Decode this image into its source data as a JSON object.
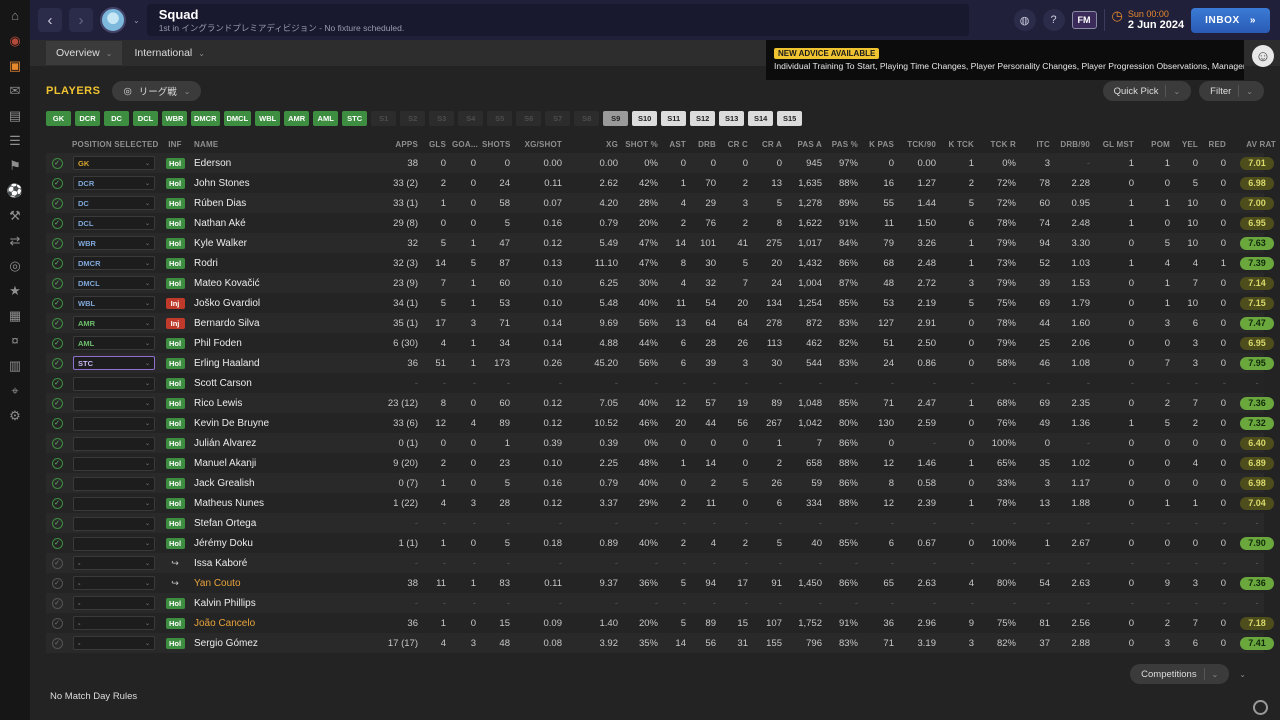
{
  "sidebar": {
    "icons": [
      {
        "name": "home-icon",
        "glyph": "⌂"
      },
      {
        "name": "notifications-icon",
        "glyph": "◉",
        "color": "#b44a3a"
      },
      {
        "name": "kit-icon",
        "glyph": "▣",
        "active": true
      },
      {
        "name": "inbox-icon",
        "glyph": "✉"
      },
      {
        "name": "news-icon",
        "glyph": "▤"
      },
      {
        "name": "squad-list-icon",
        "glyph": "☰"
      },
      {
        "name": "squad-icon",
        "glyph": "⚑"
      },
      {
        "name": "tactics-icon",
        "glyph": "⚽"
      },
      {
        "name": "training-icon",
        "glyph": "⚒"
      },
      {
        "name": "transfers-icon",
        "glyph": "⇄"
      },
      {
        "name": "scouting-icon",
        "glyph": "◎"
      },
      {
        "name": "club-icon",
        "glyph": "★"
      },
      {
        "name": "competitions-icon",
        "glyph": "▦"
      },
      {
        "name": "finances-icon",
        "glyph": "¤"
      },
      {
        "name": "stats-icon",
        "glyph": "▥"
      },
      {
        "name": "search-icon",
        "glyph": "⌖"
      },
      {
        "name": "settings-icon",
        "glyph": "⚙"
      }
    ]
  },
  "titlebar": {
    "title": "Squad",
    "subtitle": "1st in イングランドプレミアディビジョン - No fixture scheduled.",
    "fm_logo": "FM",
    "help": "?",
    "time": "Sun 00:00",
    "date": "2 Jun 2024",
    "inbox_label": "INBOX",
    "inbox_arrows": "»"
  },
  "tabs": {
    "overview": "Overview",
    "international": "International"
  },
  "advice": {
    "badge": "NEW ADVICE AVAILABLE",
    "text": "Individual Training To Start, Playing Time Changes, Player Personality Changes, Player Progression Observations, Manager Support"
  },
  "toolbar": {
    "players_label": "PLAYERS",
    "view_label": "リーグ戦",
    "quick_pick_label": "Quick Pick",
    "filter_label": "Filter"
  },
  "filters": {
    "buttons": [
      {
        "label": "GK",
        "style": "active"
      },
      {
        "label": "DCR",
        "style": "active"
      },
      {
        "label": "DC",
        "style": "active"
      },
      {
        "label": "DCL",
        "style": "active"
      },
      {
        "label": "WBR",
        "style": "active"
      },
      {
        "label": "DMCR",
        "style": "active"
      },
      {
        "label": "DMCL",
        "style": "active"
      },
      {
        "label": "WBL",
        "style": "active"
      },
      {
        "label": "AMR",
        "style": "active"
      },
      {
        "label": "AML",
        "style": "active"
      },
      {
        "label": "STC",
        "style": "active"
      },
      {
        "label": "S1",
        "style": "dim"
      },
      {
        "label": "S2",
        "style": "dim"
      },
      {
        "label": "S3",
        "style": "dim"
      },
      {
        "label": "S4",
        "style": "dim"
      },
      {
        "label": "S5",
        "style": "dim"
      },
      {
        "label": "S6",
        "style": "dim"
      },
      {
        "label": "S7",
        "style": "dim"
      },
      {
        "label": "S8",
        "style": "dim"
      },
      {
        "label": "S9",
        "style": "mid"
      },
      {
        "label": "S10",
        "style": "light"
      },
      {
        "label": "S11",
        "style": "light"
      },
      {
        "label": "S12",
        "style": "light"
      },
      {
        "label": "S13",
        "style": "light"
      },
      {
        "label": "S14",
        "style": "light"
      },
      {
        "label": "S15",
        "style": "light"
      }
    ]
  },
  "table": {
    "headers": [
      "POSITION SELECTED",
      "INF",
      "NAME",
      "APPS",
      "GLS",
      "GOA...",
      "SHOTS",
      "XG/SHOT",
      "XG",
      "SHOT %",
      "AST",
      "DRB",
      "CR C",
      "CR A",
      "PAS A",
      "PAS %",
      "K PAS",
      "TCK/90",
      "K TCK",
      "TCK R",
      "ITC",
      "DRB/90",
      "GL MST",
      "POM",
      "YEL",
      "RED",
      "AV RAT"
    ],
    "rows": [
      {
        "sel": "on",
        "pos": "GK",
        "pos_class": "gk",
        "inf": "Hol",
        "name": "Ederson",
        "name_class": "",
        "stats": [
          "38",
          "0",
          "0",
          "0",
          "0.00",
          "0.00",
          "0%",
          "0",
          "0",
          "0",
          "0",
          "945",
          "97%",
          "0",
          "0.00",
          "1",
          "0%",
          "3",
          "-",
          "1",
          "1",
          "0",
          "0"
        ],
        "rating": "7.01",
        "rating_class": "olive"
      },
      {
        "sel": "on",
        "pos": "DCR",
        "pos_class": "def",
        "inf": "Hol",
        "name": "John Stones",
        "name_class": "",
        "stats": [
          "33 (2)",
          "2",
          "0",
          "24",
          "0.11",
          "2.62",
          "42%",
          "1",
          "70",
          "2",
          "13",
          "1,635",
          "88%",
          "16",
          "1.27",
          "2",
          "72%",
          "78",
          "2.28",
          "0",
          "0",
          "5",
          "0"
        ],
        "rating": "6.98",
        "rating_class": "olive"
      },
      {
        "sel": "on",
        "pos": "DC",
        "pos_class": "def",
        "inf": "Hol",
        "name": "Rúben Dias",
        "name_class": "",
        "stats": [
          "33 (1)",
          "1",
          "0",
          "58",
          "0.07",
          "4.20",
          "28%",
          "4",
          "29",
          "3",
          "5",
          "1,278",
          "89%",
          "55",
          "1.44",
          "5",
          "72%",
          "60",
          "0.95",
          "1",
          "1",
          "10",
          "0"
        ],
        "rating": "7.00",
        "rating_class": "olive"
      },
      {
        "sel": "on",
        "pos": "DCL",
        "pos_class": "def",
        "inf": "Hol",
        "name": "Nathan Aké",
        "name_class": "",
        "stats": [
          "29 (8)",
          "0",
          "0",
          "5",
          "0.16",
          "0.79",
          "20%",
          "2",
          "76",
          "2",
          "8",
          "1,622",
          "91%",
          "11",
          "1.50",
          "6",
          "78%",
          "74",
          "2.48",
          "1",
          "0",
          "10",
          "0"
        ],
        "rating": "6.95",
        "rating_class": "olive"
      },
      {
        "sel": "on",
        "pos": "WBR",
        "pos_class": "def",
        "inf": "Hol",
        "name": "Kyle Walker",
        "name_class": "",
        "stats": [
          "32",
          "5",
          "1",
          "47",
          "0.12",
          "5.49",
          "47%",
          "14",
          "101",
          "41",
          "275",
          "1,017",
          "84%",
          "79",
          "3.26",
          "1",
          "79%",
          "94",
          "3.30",
          "0",
          "5",
          "10",
          "0"
        ],
        "rating": "7.63",
        "rating_class": "green"
      },
      {
        "sel": "on",
        "pos": "DMCR",
        "pos_class": "def",
        "inf": "Hol",
        "name": "Rodri",
        "name_class": "",
        "stats": [
          "32 (3)",
          "14",
          "5",
          "87",
          "0.13",
          "11.10",
          "47%",
          "8",
          "30",
          "5",
          "20",
          "1,432",
          "86%",
          "68",
          "2.48",
          "1",
          "73%",
          "52",
          "1.03",
          "1",
          "4",
          "4",
          "1"
        ],
        "rating": "7.39",
        "rating_class": "green"
      },
      {
        "sel": "on",
        "pos": "DMCL",
        "pos_class": "def",
        "inf": "Hol",
        "name": "Mateo Kovačić",
        "name_class": "",
        "stats": [
          "23 (9)",
          "7",
          "1",
          "60",
          "0.10",
          "6.25",
          "30%",
          "4",
          "32",
          "7",
          "24",
          "1,004",
          "87%",
          "48",
          "2.72",
          "3",
          "79%",
          "39",
          "1.53",
          "0",
          "1",
          "7",
          "0"
        ],
        "rating": "7.14",
        "rating_class": "olive"
      },
      {
        "sel": "on",
        "pos": "WBL",
        "pos_class": "def",
        "inf": "Inj",
        "name": "Joško Gvardiol",
        "name_class": "",
        "stats": [
          "34 (1)",
          "5",
          "1",
          "53",
          "0.10",
          "5.48",
          "40%",
          "11",
          "54",
          "20",
          "134",
          "1,254",
          "85%",
          "53",
          "2.19",
          "5",
          "75%",
          "69",
          "1.79",
          "0",
          "1",
          "10",
          "0"
        ],
        "rating": "7.15",
        "rating_class": "olive"
      },
      {
        "sel": "on",
        "pos": "AMR",
        "pos_class": "att",
        "inf": "Inj",
        "name": "Bernardo Silva",
        "name_class": "",
        "stats": [
          "35 (1)",
          "17",
          "3",
          "71",
          "0.14",
          "9.69",
          "56%",
          "13",
          "64",
          "64",
          "278",
          "872",
          "83%",
          "127",
          "2.91",
          "0",
          "78%",
          "44",
          "1.60",
          "0",
          "3",
          "6",
          "0"
        ],
        "rating": "7.47",
        "rating_class": "green"
      },
      {
        "sel": "on",
        "pos": "AML",
        "pos_class": "att",
        "inf": "Hol",
        "name": "Phil Foden",
        "name_class": "",
        "stats": [
          "6 (30)",
          "4",
          "1",
          "34",
          "0.14",
          "4.88",
          "44%",
          "6",
          "28",
          "26",
          "113",
          "462",
          "82%",
          "51",
          "2.50",
          "0",
          "79%",
          "25",
          "2.06",
          "0",
          "0",
          "3",
          "0"
        ],
        "rating": "6.95",
        "rating_class": "olive"
      },
      {
        "sel": "on",
        "pos": "STC",
        "pos_class": "stc",
        "inf": "Hol",
        "name": "Erling Haaland",
        "name_class": "",
        "stats": [
          "36",
          "51",
          "1",
          "173",
          "0.26",
          "45.20",
          "56%",
          "6",
          "39",
          "3",
          "30",
          "544",
          "83%",
          "24",
          "0.86",
          "0",
          "58%",
          "46",
          "1.08",
          "0",
          "7",
          "3",
          "0"
        ],
        "rating": "7.95",
        "rating_class": "green"
      },
      {
        "sel": "on",
        "pos": "",
        "pos_class": "dim",
        "inf": "Hol",
        "name": "Scott Carson",
        "name_class": "",
        "stats": [
          "-",
          "-",
          "-",
          "-",
          "-",
          "-",
          "-",
          "-",
          "-",
          "-",
          "-",
          "-",
          "-",
          "-",
          "-",
          "-",
          "-",
          "-",
          "-",
          "-",
          "-",
          "-",
          "-"
        ],
        "rating": "-",
        "rating_class": "dash"
      },
      {
        "sel": "on",
        "pos": "",
        "pos_class": "dim",
        "inf": "Hol",
        "name": "Rico Lewis",
        "name_class": "",
        "stats": [
          "23 (12)",
          "8",
          "0",
          "60",
          "0.12",
          "7.05",
          "40%",
          "12",
          "57",
          "19",
          "89",
          "1,048",
          "85%",
          "71",
          "2.47",
          "1",
          "68%",
          "69",
          "2.35",
          "0",
          "2",
          "7",
          "0"
        ],
        "rating": "7.36",
        "rating_class": "green"
      },
      {
        "sel": "on",
        "pos": "",
        "pos_class": "dim",
        "inf": "Hol",
        "name": "Kevin De Bruyne",
        "name_class": "",
        "stats": [
          "33 (6)",
          "12",
          "4",
          "89",
          "0.12",
          "10.52",
          "46%",
          "20",
          "44",
          "56",
          "267",
          "1,042",
          "80%",
          "130",
          "2.59",
          "0",
          "76%",
          "49",
          "1.36",
          "1",
          "5",
          "2",
          "0"
        ],
        "rating": "7.32",
        "rating_class": "green"
      },
      {
        "sel": "on",
        "pos": "",
        "pos_class": "dim",
        "inf": "Hol",
        "name": "Julián Álvarez",
        "name_class": "",
        "stats": [
          "0 (1)",
          "0",
          "0",
          "1",
          "0.39",
          "0.39",
          "0%",
          "0",
          "0",
          "0",
          "1",
          "7",
          "86%",
          "0",
          "-",
          "0",
          "100%",
          "0",
          "-",
          "0",
          "0",
          "0",
          "0"
        ],
        "rating": "6.40",
        "rating_class": "olive"
      },
      {
        "sel": "on",
        "pos": "",
        "pos_class": "dim",
        "inf": "Hol",
        "name": "Manuel Akanji",
        "name_class": "",
        "stats": [
          "9 (20)",
          "2",
          "0",
          "23",
          "0.10",
          "2.25",
          "48%",
          "1",
          "14",
          "0",
          "2",
          "658",
          "88%",
          "12",
          "1.46",
          "1",
          "65%",
          "35",
          "1.02",
          "0",
          "0",
          "4",
          "0"
        ],
        "rating": "6.89",
        "rating_class": "olive"
      },
      {
        "sel": "on",
        "pos": "",
        "pos_class": "dim",
        "inf": "Hol",
        "name": "Jack Grealish",
        "name_class": "",
        "stats": [
          "0 (7)",
          "1",
          "0",
          "5",
          "0.16",
          "0.79",
          "40%",
          "0",
          "2",
          "5",
          "26",
          "59",
          "86%",
          "8",
          "0.58",
          "0",
          "33%",
          "3",
          "1.17",
          "0",
          "0",
          "0",
          "0"
        ],
        "rating": "6.98",
        "rating_class": "olive"
      },
      {
        "sel": "on",
        "pos": "",
        "pos_class": "dim",
        "inf": "Hol",
        "name": "Matheus Nunes",
        "name_class": "",
        "stats": [
          "1 (22)",
          "4",
          "3",
          "28",
          "0.12",
          "3.37",
          "29%",
          "2",
          "11",
          "0",
          "6",
          "334",
          "88%",
          "12",
          "2.39",
          "1",
          "78%",
          "13",
          "1.88",
          "0",
          "1",
          "1",
          "0"
        ],
        "rating": "7.04",
        "rating_class": "olive"
      },
      {
        "sel": "on",
        "pos": "",
        "pos_class": "dim",
        "inf": "Hol",
        "name": "Stefan Ortega",
        "name_class": "",
        "stats": [
          "-",
          "-",
          "-",
          "-",
          "-",
          "-",
          "-",
          "-",
          "-",
          "-",
          "-",
          "-",
          "-",
          "-",
          "-",
          "-",
          "-",
          "-",
          "-",
          "-",
          "-",
          "-",
          "-"
        ],
        "rating": "-",
        "rating_class": "dash"
      },
      {
        "sel": "on",
        "pos": "",
        "pos_class": "dim",
        "inf": "Hol",
        "name": "Jérémy Doku",
        "name_class": "",
        "stats": [
          "1 (1)",
          "1",
          "0",
          "5",
          "0.18",
          "0.89",
          "40%",
          "2",
          "4",
          "2",
          "5",
          "40",
          "85%",
          "6",
          "0.67",
          "0",
          "100%",
          "1",
          "2.67",
          "0",
          "0",
          "0",
          "0"
        ],
        "rating": "7.90",
        "rating_class": "green"
      },
      {
        "sel": "dim",
        "pos": "-",
        "pos_class": "dash",
        "inf": "loan",
        "name": "Issa Kaboré",
        "name_class": "",
        "stats": [
          "-",
          "-",
          "-",
          "-",
          "-",
          "-",
          "-",
          "-",
          "-",
          "-",
          "-",
          "-",
          "-",
          "-",
          "-",
          "-",
          "-",
          "-",
          "-",
          "-",
          "-",
          "-",
          "-"
        ],
        "rating": "-",
        "rating_class": "dash"
      },
      {
        "sel": "dim",
        "pos": "-",
        "pos_class": "dash",
        "inf": "loan",
        "name": "Yan Couto",
        "name_class": "loan",
        "stats": [
          "38",
          "11",
          "1",
          "83",
          "0.11",
          "9.37",
          "36%",
          "5",
          "94",
          "17",
          "91",
          "1,450",
          "86%",
          "65",
          "2.63",
          "4",
          "80%",
          "54",
          "2.63",
          "0",
          "9",
          "3",
          "0"
        ],
        "rating": "7.36",
        "rating_class": "green"
      },
      {
        "sel": "dim",
        "pos": "-",
        "pos_class": "dash",
        "inf": "Hol",
        "name": "Kalvin Phillips",
        "name_class": "",
        "stats": [
          "-",
          "-",
          "-",
          "-",
          "-",
          "-",
          "-",
          "-",
          "-",
          "-",
          "-",
          "-",
          "-",
          "-",
          "-",
          "-",
          "-",
          "-",
          "-",
          "-",
          "-",
          "-",
          "-"
        ],
        "rating": "-",
        "rating_class": "dash"
      },
      {
        "sel": "dim",
        "pos": "-",
        "pos_class": "dash",
        "inf": "Hol",
        "name": "João Cancelo",
        "name_class": "loan",
        "stats": [
          "36",
          "1",
          "0",
          "15",
          "0.09",
          "1.40",
          "20%",
          "5",
          "89",
          "15",
          "107",
          "1,752",
          "91%",
          "36",
          "2.96",
          "9",
          "75%",
          "81",
          "2.56",
          "0",
          "2",
          "7",
          "0"
        ],
        "rating": "7.18",
        "rating_class": "olive"
      },
      {
        "sel": "dim",
        "pos": "-",
        "pos_class": "dash",
        "inf": "Hol",
        "name": "Sergio Gómez",
        "name_class": "",
        "stats": [
          "17 (17)",
          "4",
          "3",
          "48",
          "0.08",
          "3.92",
          "35%",
          "14",
          "56",
          "31",
          "155",
          "796",
          "83%",
          "71",
          "3.19",
          "3",
          "82%",
          "37",
          "2.88",
          "0",
          "3",
          "6",
          "0"
        ],
        "rating": "7.41",
        "rating_class": "green"
      }
    ]
  },
  "footer": {
    "rules_text": "No Match Day Rules",
    "competitions_label": "Competitions"
  }
}
